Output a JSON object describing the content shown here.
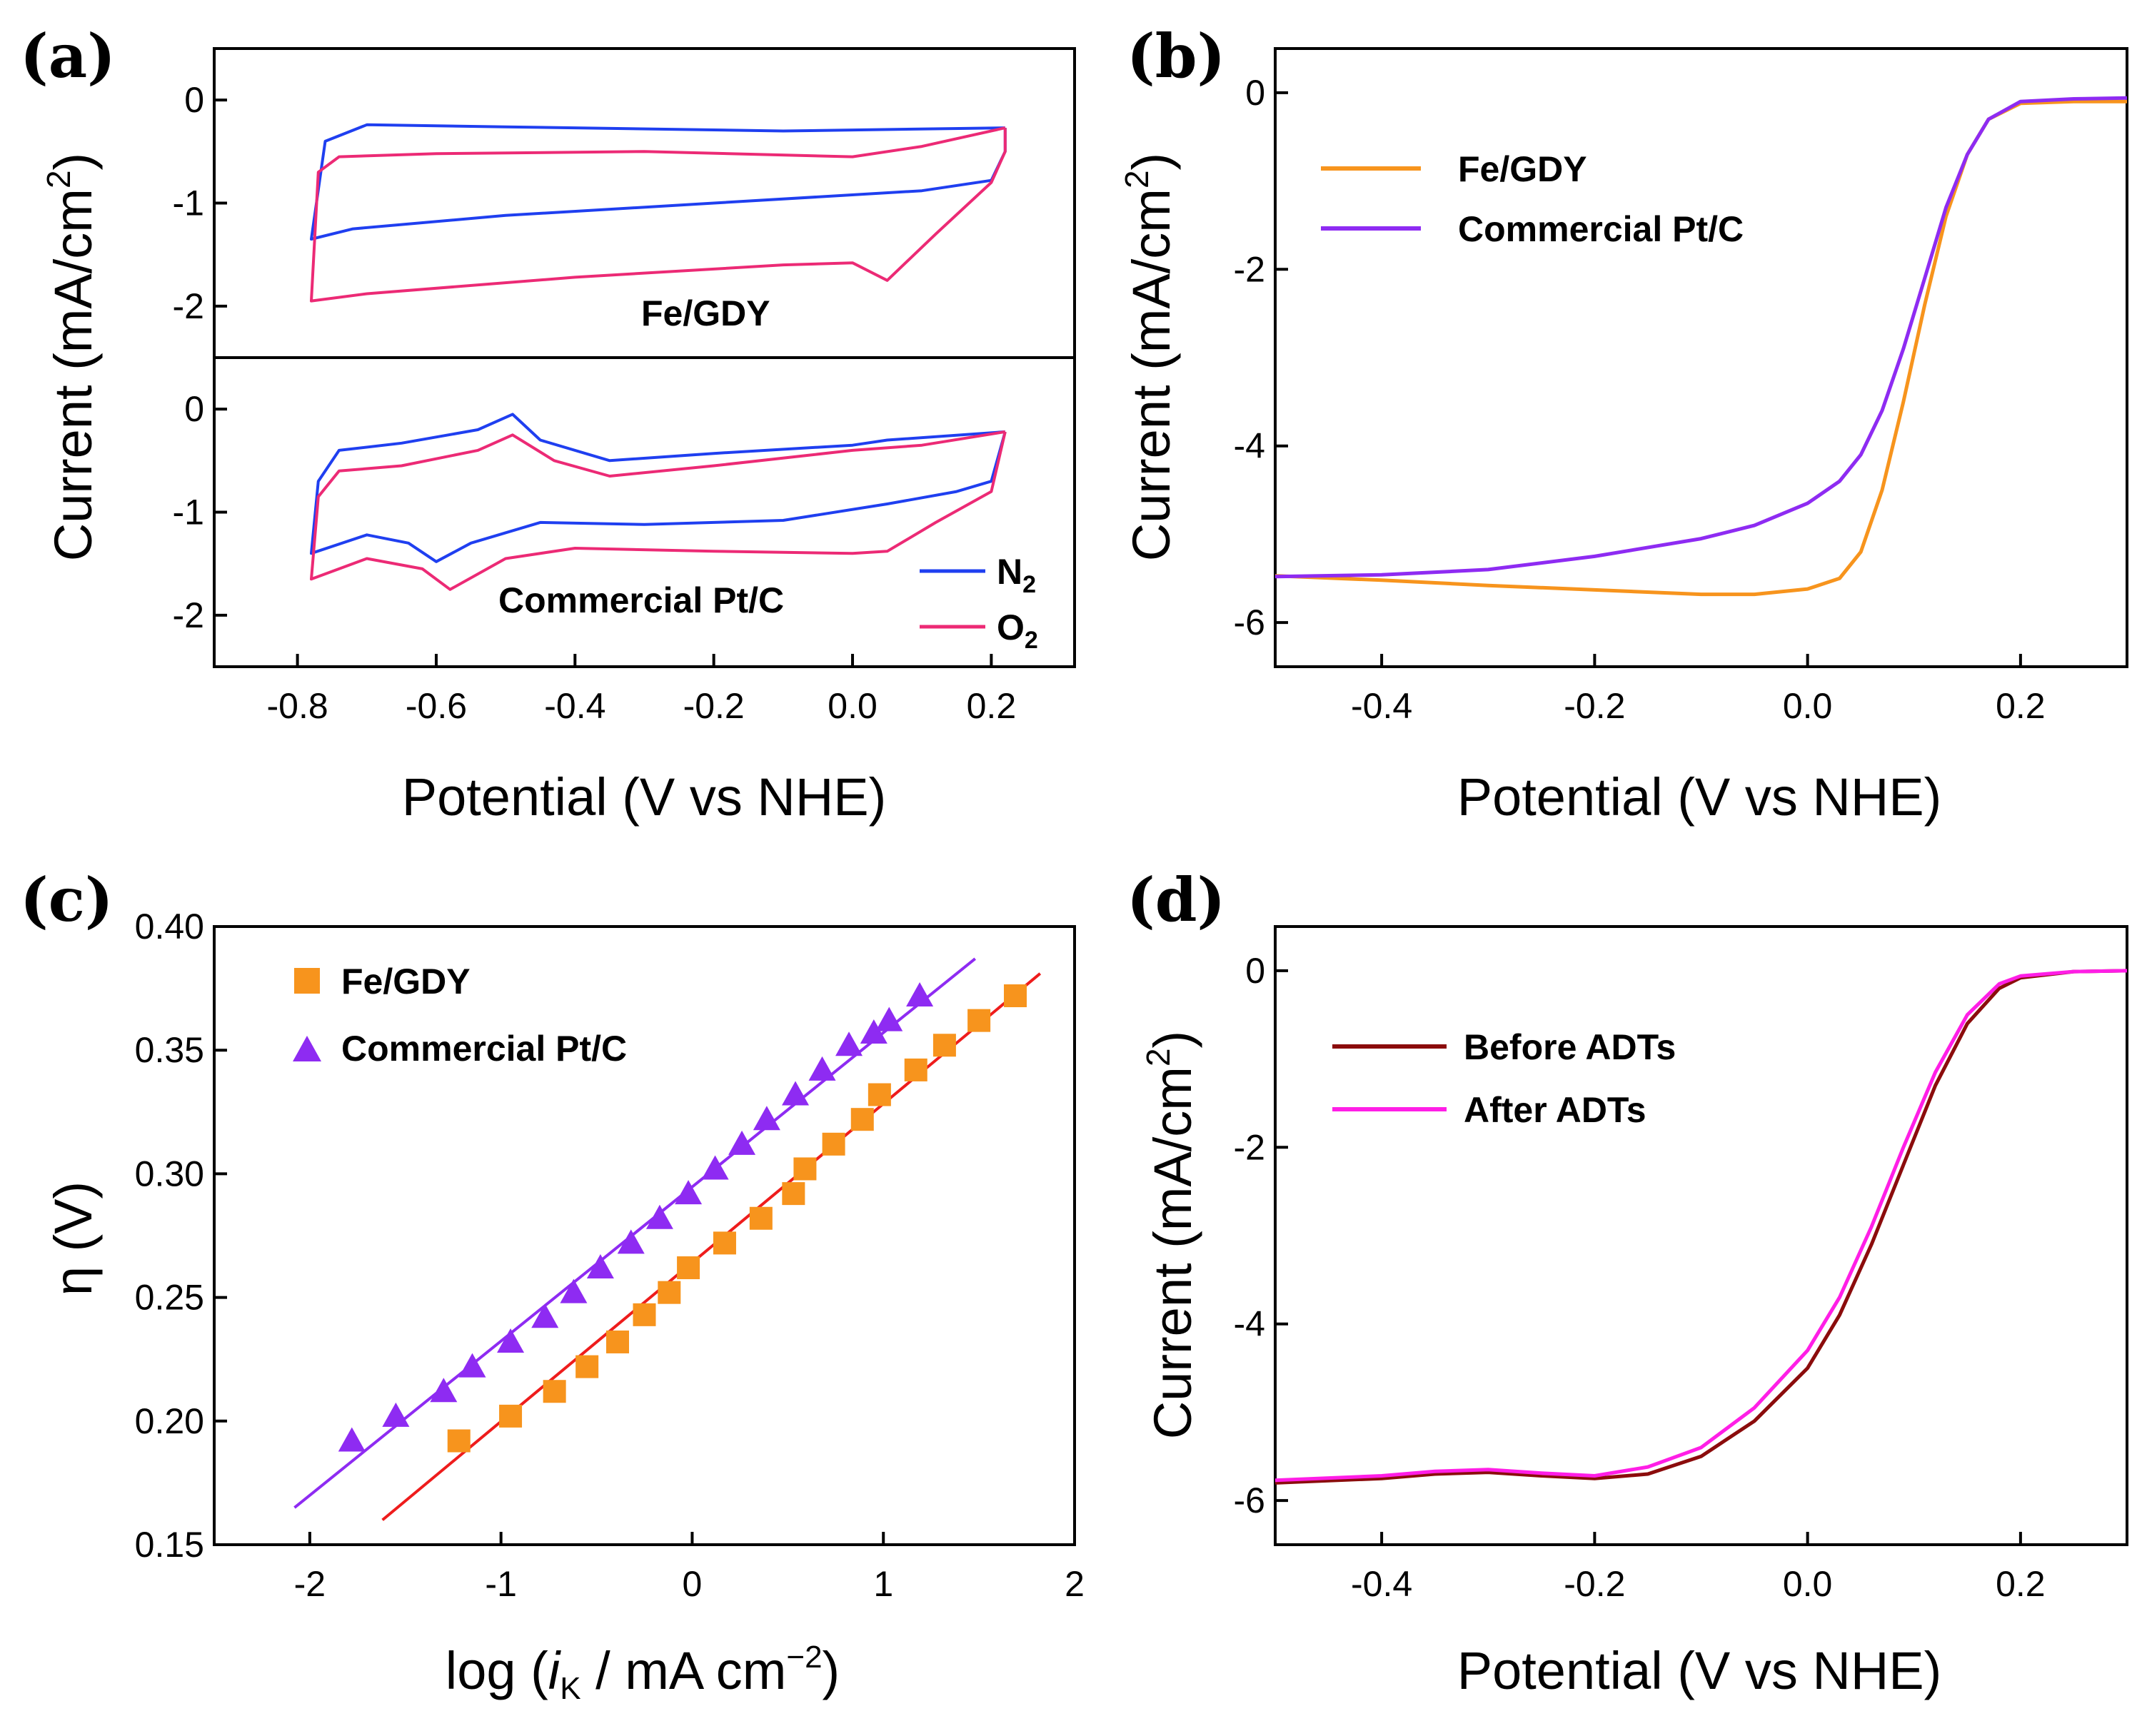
{
  "chart_data": [
    {
      "id": "a",
      "type": "line",
      "panel_label": "(a)",
      "xlabel": "Potential (V vs NHE)",
      "ylabel_main": "Current (mA/cm",
      "ylabel_sup": "2",
      "ylabel_close": ")",
      "xlim": [
        -0.92,
        0.32
      ],
      "x_ticks": [
        "-0.8",
        "-0.6",
        "-0.4",
        "-0.2",
        "0.0",
        "0.2"
      ],
      "x_tick_values": [
        -0.8,
        -0.6,
        -0.4,
        -0.2,
        0.0,
        0.2
      ],
      "subplots": [
        {
          "title": "Fe/GDY",
          "ylim": [
            -2.5,
            0.5
          ],
          "y_ticks": [
            "0",
            "-1",
            "-2"
          ],
          "y_tick_values": [
            0,
            -1,
            -2
          ],
          "series": [
            {
              "name": "N2",
              "color": "#1f3ff0",
              "x": [
                0.22,
                -0.1,
                -0.5,
                -0.7,
                -0.76,
                -0.78,
                -0.72,
                -0.5,
                -0.2,
                0.1,
                0.2,
                0.22,
                0.22
              ],
              "y": [
                -0.27,
                -0.3,
                -0.26,
                -0.24,
                -0.4,
                -1.35,
                -1.25,
                -1.12,
                -1.0,
                -0.88,
                -0.78,
                -0.5,
                -0.27
              ]
            },
            {
              "name": "O2",
              "color": "#ec2a75",
              "x": [
                0.22,
                0.1,
                0.0,
                -0.3,
                -0.6,
                -0.74,
                -0.77,
                -0.78,
                -0.7,
                -0.4,
                -0.1,
                0.0,
                0.05,
                0.12,
                0.2,
                0.22,
                0.22
              ],
              "y": [
                -0.27,
                -0.45,
                -0.55,
                -0.5,
                -0.52,
                -0.55,
                -0.7,
                -1.95,
                -1.88,
                -1.72,
                -1.6,
                -1.58,
                -1.75,
                -1.3,
                -0.8,
                -0.5,
                -0.27
              ]
            }
          ]
        },
        {
          "title": "Commercial Pt/C",
          "ylim": [
            -2.5,
            0.5
          ],
          "y_ticks": [
            "0",
            "-1",
            "-2"
          ],
          "y_tick_values": [
            0,
            -1,
            -2
          ],
          "series": [
            {
              "name": "N2",
              "color": "#1f3ff0",
              "x": [
                0.22,
                0.05,
                0.0,
                -0.2,
                -0.35,
                -0.45,
                -0.49,
                -0.54,
                -0.65,
                -0.74,
                -0.77,
                -0.78,
                -0.7,
                -0.64,
                -0.6,
                -0.55,
                -0.45,
                -0.3,
                -0.1,
                0.05,
                0.15,
                0.2,
                0.22
              ],
              "y": [
                -0.22,
                -0.3,
                -0.35,
                -0.43,
                -0.5,
                -0.3,
                -0.05,
                -0.2,
                -0.33,
                -0.4,
                -0.7,
                -1.4,
                -1.22,
                -1.3,
                -1.48,
                -1.3,
                -1.1,
                -1.12,
                -1.08,
                -0.92,
                -0.8,
                -0.7,
                -0.22
              ]
            },
            {
              "name": "O2",
              "color": "#ec2a75",
              "x": [
                0.22,
                0.1,
                0.0,
                -0.2,
                -0.35,
                -0.43,
                -0.49,
                -0.54,
                -0.65,
                -0.74,
                -0.77,
                -0.78,
                -0.7,
                -0.62,
                -0.58,
                -0.5,
                -0.4,
                -0.2,
                0.0,
                0.05,
                0.12,
                0.2,
                0.22
              ],
              "y": [
                -0.22,
                -0.35,
                -0.4,
                -0.55,
                -0.65,
                -0.5,
                -0.25,
                -0.4,
                -0.55,
                -0.6,
                -0.85,
                -1.65,
                -1.45,
                -1.55,
                -1.75,
                -1.45,
                -1.35,
                -1.38,
                -1.4,
                -1.38,
                -1.1,
                -0.8,
                -0.22
              ]
            }
          ]
        }
      ],
      "legend": [
        {
          "name_main": "N",
          "name_sub": "2",
          "color": "#1f3ff0"
        },
        {
          "name_main": "O",
          "name_sub": "2",
          "color": "#ec2a75"
        }
      ]
    },
    {
      "id": "b",
      "type": "line",
      "panel_label": "(b)",
      "xlabel": "Potential (V vs NHE)",
      "ylabel_main": "Current (mA/cm",
      "ylabel_sup": "2",
      "ylabel_close": ")",
      "xlim": [
        -0.5,
        0.3
      ],
      "ylim": [
        -6.5,
        0.5
      ],
      "x_ticks": [
        "-0.4",
        "-0.2",
        "0.0",
        "0.2"
      ],
      "x_tick_values": [
        -0.4,
        -0.2,
        0.0,
        0.2
      ],
      "y_ticks": [
        "0",
        "-2",
        "-4",
        "-6"
      ],
      "y_tick_values": [
        0,
        -2,
        -4,
        -6
      ],
      "series": [
        {
          "name": "Fe/GDY",
          "color": "#f7941d",
          "x": [
            -0.5,
            -0.4,
            -0.3,
            -0.2,
            -0.1,
            -0.05,
            0.0,
            0.03,
            0.05,
            0.07,
            0.09,
            0.11,
            0.13,
            0.15,
            0.17,
            0.2,
            0.25,
            0.3
          ],
          "y": [
            -5.47,
            -5.52,
            -5.58,
            -5.63,
            -5.68,
            -5.68,
            -5.62,
            -5.5,
            -5.2,
            -4.5,
            -3.5,
            -2.4,
            -1.4,
            -0.7,
            -0.3,
            -0.12,
            -0.1,
            -0.1
          ]
        },
        {
          "name": "Commercial Pt/C",
          "color": "#8e2bf2",
          "x": [
            -0.5,
            -0.4,
            -0.3,
            -0.2,
            -0.1,
            -0.05,
            0.0,
            0.03,
            0.05,
            0.07,
            0.09,
            0.11,
            0.13,
            0.15,
            0.17,
            0.2,
            0.25,
            0.3
          ],
          "y": [
            -5.48,
            -5.46,
            -5.4,
            -5.25,
            -5.05,
            -4.9,
            -4.65,
            -4.4,
            -4.1,
            -3.6,
            -2.9,
            -2.1,
            -1.3,
            -0.7,
            -0.3,
            -0.1,
            -0.07,
            -0.06
          ]
        }
      ]
    },
    {
      "id": "c",
      "type": "scatter",
      "panel_label": "(c)",
      "xlabel_pre": "log (",
      "xlabel_i": "i",
      "xlabel_sub": "K",
      "xlabel_post": " / mA cm",
      "xlabel_sup": "−2",
      "xlabel_close": ")",
      "ylabel": "η (V)",
      "xlim": [
        -2.5,
        2.0
      ],
      "ylim": [
        0.15,
        0.4
      ],
      "x_ticks": [
        "-2",
        "-1",
        "0",
        "1",
        "2"
      ],
      "x_tick_values": [
        -2,
        -1,
        0,
        1,
        2
      ],
      "y_ticks": [
        "0.15",
        "0.20",
        "0.25",
        "0.30",
        "0.35",
        "0.40"
      ],
      "y_tick_values": [
        0.15,
        0.2,
        0.25,
        0.3,
        0.35,
        0.4
      ],
      "series": [
        {
          "name": "Fe/GDY",
          "color": "#f7941d",
          "marker": "square",
          "fit_color": "#ee1c1c",
          "x": [
            -1.22,
            -0.95,
            -0.72,
            -0.55,
            -0.39,
            -0.25,
            -0.12,
            -0.02,
            0.17,
            0.36,
            0.53,
            0.59,
            0.74,
            0.89,
            0.98,
            1.17,
            1.32,
            1.5,
            1.69
          ],
          "y": [
            0.192,
            0.202,
            0.212,
            0.222,
            0.232,
            0.243,
            0.252,
            0.262,
            0.272,
            0.282,
            0.292,
            0.302,
            0.312,
            0.322,
            0.332,
            0.342,
            0.352,
            0.362,
            0.372
          ],
          "fit_x": [
            -1.62,
            1.82
          ],
          "fit_y": [
            0.16,
            0.381
          ]
        },
        {
          "name": "Commercial Pt/C",
          "color": "#8e2bf2",
          "marker": "triangle",
          "fit_color": "#8e2bf2",
          "x": [
            -1.78,
            -1.55,
            -1.3,
            -1.15,
            -0.95,
            -0.77,
            -0.62,
            -0.48,
            -0.32,
            -0.17,
            -0.02,
            0.12,
            0.26,
            0.39,
            0.54,
            0.68,
            0.82,
            0.95,
            1.03,
            1.19
          ],
          "y": [
            0.192,
            0.202,
            0.212,
            0.222,
            0.232,
            0.242,
            0.252,
            0.262,
            0.272,
            0.282,
            0.292,
            0.302,
            0.312,
            0.322,
            0.332,
            0.342,
            0.352,
            0.357,
            0.362,
            0.372
          ],
          "fit_x": [
            -2.08,
            1.48
          ],
          "fit_y": [
            0.165,
            0.387
          ]
        }
      ]
    },
    {
      "id": "d",
      "type": "line",
      "panel_label": "(d)",
      "xlabel": "Potential (V vs NHE)",
      "ylabel_main": "Current (mA/cm",
      "ylabel_sup": "2",
      "ylabel_close": ")",
      "xlim": [
        -0.5,
        0.3
      ],
      "ylim": [
        -6.5,
        0.5
      ],
      "x_ticks": [
        "-0.4",
        "-0.2",
        "0.0",
        "0.2"
      ],
      "x_tick_values": [
        -0.4,
        -0.2,
        0.0,
        0.2
      ],
      "y_ticks": [
        "0",
        "-2",
        "-4",
        "-6"
      ],
      "y_tick_values": [
        0,
        -2,
        -4,
        -6
      ],
      "series": [
        {
          "name": "Before ADTs",
          "color": "#8b0c0c",
          "x": [
            -0.5,
            -0.4,
            -0.35,
            -0.3,
            -0.25,
            -0.2,
            -0.15,
            -0.1,
            -0.05,
            0.0,
            0.03,
            0.06,
            0.09,
            0.12,
            0.15,
            0.18,
            0.2,
            0.25,
            0.3
          ],
          "y": [
            -5.8,
            -5.75,
            -5.7,
            -5.68,
            -5.72,
            -5.75,
            -5.7,
            -5.5,
            -5.1,
            -4.5,
            -3.9,
            -3.1,
            -2.2,
            -1.3,
            -0.6,
            -0.2,
            -0.08,
            -0.01,
            0.0
          ]
        },
        {
          "name": "After ADTs",
          "color": "#ff1ee6",
          "x": [
            -0.5,
            -0.4,
            -0.35,
            -0.3,
            -0.25,
            -0.2,
            -0.15,
            -0.1,
            -0.05,
            0.0,
            0.03,
            0.06,
            0.09,
            0.12,
            0.15,
            0.18,
            0.2,
            0.25,
            0.3
          ],
          "y": [
            -5.77,
            -5.72,
            -5.67,
            -5.65,
            -5.69,
            -5.72,
            -5.62,
            -5.4,
            -4.95,
            -4.3,
            -3.7,
            -2.9,
            -2.0,
            -1.15,
            -0.5,
            -0.15,
            -0.06,
            -0.01,
            0.0
          ]
        }
      ]
    }
  ]
}
